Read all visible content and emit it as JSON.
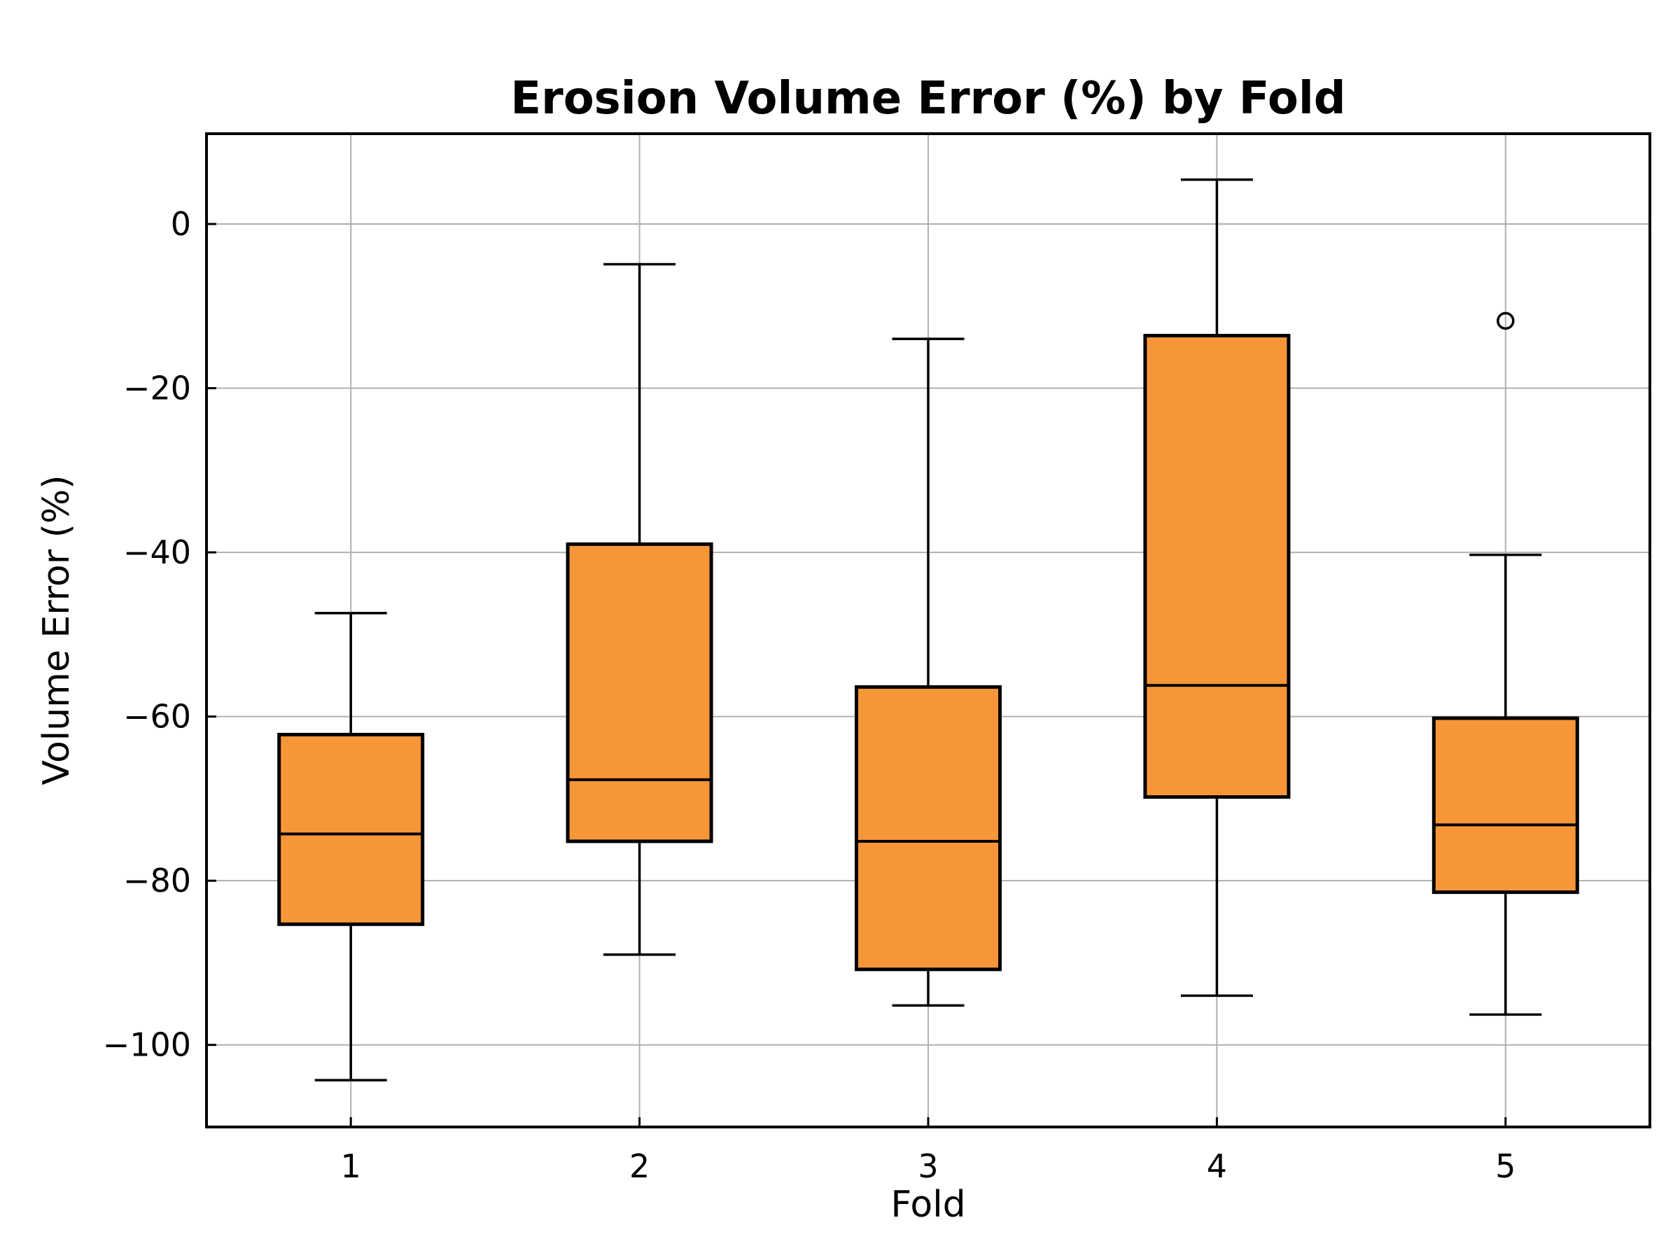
{
  "chart_data": {
    "type": "box",
    "title": "Erosion Volume Error (%) by Fold",
    "xlabel": "Fold",
    "ylabel": "Volume Error (%)",
    "ylim": [
      -110,
      11
    ],
    "yticks": [
      0,
      -20,
      -40,
      -60,
      -80,
      -100
    ],
    "ytick_labels": [
      "0",
      "−20",
      "−40",
      "−60",
      "−80",
      "−100"
    ],
    "categories": [
      "1",
      "2",
      "3",
      "4",
      "5"
    ],
    "grid": true,
    "colors": {
      "box_fill": "#f79638",
      "stroke": "#000000",
      "grid": "#b0b0b0"
    },
    "boxes": [
      {
        "fold": "1",
        "whisker_low": -104.3,
        "q1": -85.3,
        "median": -74.3,
        "q3": -62.2,
        "whisker_high": -47.4,
        "outliers": []
      },
      {
        "fold": "2",
        "whisker_low": -89.0,
        "q1": -75.2,
        "median": -67.7,
        "q3": -39.0,
        "whisker_high": -4.9,
        "outliers": []
      },
      {
        "fold": "3",
        "whisker_low": -95.2,
        "q1": -90.8,
        "median": -75.2,
        "q3": -56.4,
        "whisker_high": -14.0,
        "outliers": []
      },
      {
        "fold": "4",
        "whisker_low": -94.0,
        "q1": -69.8,
        "median": -56.2,
        "q3": -13.6,
        "whisker_high": 5.4,
        "outliers": []
      },
      {
        "fold": "5",
        "whisker_low": -96.3,
        "q1": -81.4,
        "median": -73.2,
        "q3": -60.2,
        "whisker_high": -40.3,
        "outliers": [
          -11.8
        ]
      }
    ]
  }
}
